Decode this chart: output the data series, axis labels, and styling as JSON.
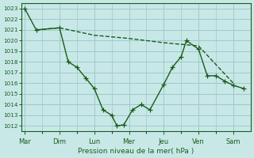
{
  "xlabel": "Pression niveau de la mer( hPa )",
  "bg_color": "#c8e8e8",
  "grid_color": "#a0c8c8",
  "line_color": "#1a5c1a",
  "ylim": [
    1011.5,
    1023.5
  ],
  "yticks": [
    1012,
    1013,
    1014,
    1015,
    1016,
    1017,
    1018,
    1019,
    1020,
    1021,
    1022,
    1023
  ],
  "xtick_labels": [
    "Mar",
    "Dim",
    "Lun",
    "Mer",
    "Jeu",
    "Ven",
    "Sam"
  ],
  "xtick_positions": [
    0,
    1,
    2,
    3,
    4,
    5,
    6
  ],
  "xlim": [
    -0.1,
    6.5
  ],
  "line1_x": [
    0,
    0.33,
    1.0,
    1.25,
    1.5,
    1.75,
    2.0,
    2.25,
    2.5,
    2.65,
    2.85,
    3.1,
    3.35,
    3.6,
    4.0,
    4.25,
    4.5,
    4.65,
    5.0,
    5.25,
    5.5,
    5.75,
    6.0,
    6.3
  ],
  "line1_y": [
    1023,
    1021,
    1021.2,
    1018,
    1017.5,
    1016.5,
    1015.5,
    1013.5,
    1013,
    1012,
    1012.1,
    1013.5,
    1014,
    1013.5,
    1015.9,
    1017.5,
    1018.5,
    1020,
    1019.2,
    1016.7,
    1016.7,
    1016.2,
    1015.8,
    1015.5
  ],
  "line2_x": [
    0.33,
    1.0,
    2.0,
    3.0,
    4.0,
    5.0,
    6.0
  ],
  "line2_y": [
    1021,
    1021.2,
    1020.5,
    1020.2,
    1019.8,
    1019.5,
    1016
  ],
  "marker_size": 3,
  "linewidth": 1.0
}
